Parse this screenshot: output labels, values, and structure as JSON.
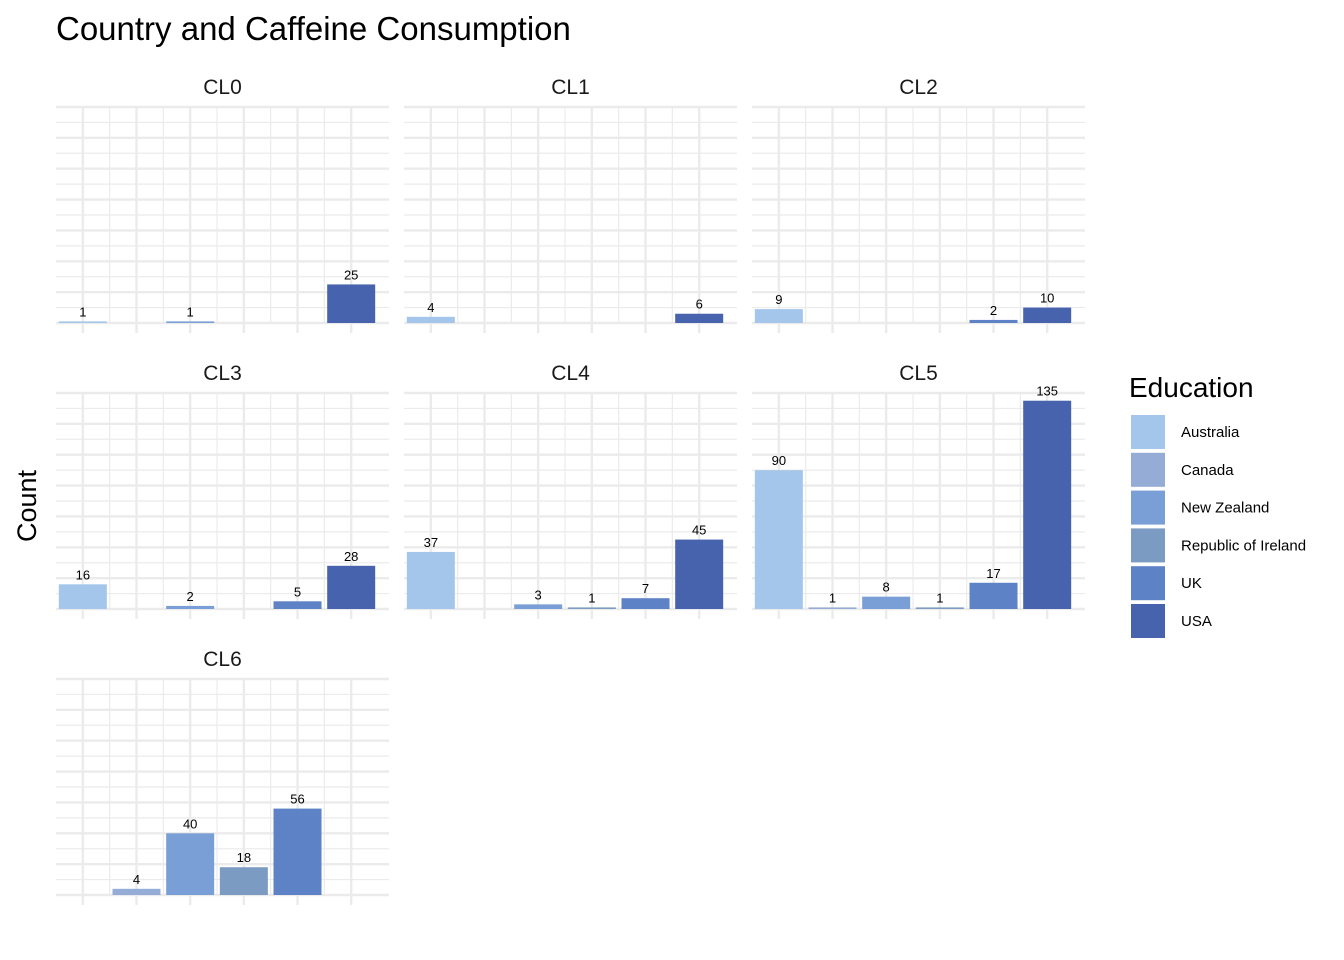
{
  "chart_data": {
    "type": "bar",
    "title": "Country and Caffeine Consumption",
    "xlabel": "",
    "ylabel": "Count",
    "ylim": [
      0,
      140
    ],
    "legend": {
      "title": "Education",
      "position": "right"
    },
    "grid": true,
    "categories": [
      "Australia",
      "Canada",
      "New Zealand",
      "Republic of Ireland",
      "UK",
      "USA"
    ],
    "colors": {
      "Australia": "#a3c6ea",
      "Canada": "#94acd6",
      "New Zealand": "#7a9fd6",
      "Republic of Ireland": "#7b9bc3",
      "UK": "#5e82c6",
      "USA": "#4763ae"
    },
    "panels": [
      {
        "name": "CL0",
        "values": [
          1,
          null,
          1,
          null,
          null,
          25
        ]
      },
      {
        "name": "CL1",
        "values": [
          4,
          null,
          null,
          null,
          null,
          6
        ]
      },
      {
        "name": "CL2",
        "values": [
          9,
          null,
          null,
          null,
          2,
          10
        ]
      },
      {
        "name": "CL3",
        "values": [
          16,
          null,
          2,
          null,
          5,
          28
        ]
      },
      {
        "name": "CL4",
        "values": [
          37,
          null,
          3,
          1,
          7,
          45
        ]
      },
      {
        "name": "CL5",
        "values": [
          90,
          1,
          8,
          1,
          17,
          135
        ]
      },
      {
        "name": "CL6",
        "values": [
          null,
          4,
          40,
          18,
          56,
          null
        ]
      }
    ]
  }
}
